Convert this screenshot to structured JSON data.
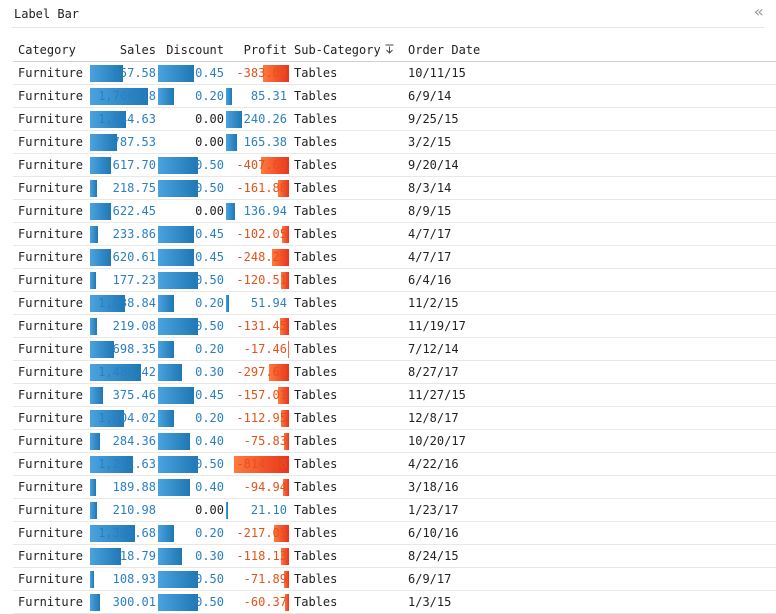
{
  "panel": {
    "title": "Label Bar",
    "collapse_glyph": "«"
  },
  "colors": {
    "bar_positive": "#1f77b4",
    "bar_negative": "#e8341f",
    "text_positive": "#2a7fc4",
    "text_negative": "#e4521b"
  },
  "table": {
    "columns": {
      "category": "Category",
      "sales": "Sales",
      "discount": "Discount",
      "profit": "Profit",
      "sub_category": "Sub-Category",
      "order_date": "Order Date"
    },
    "sort_icon": "sort-descending-icon",
    "rows": [
      {
        "category": "Furniture",
        "sales": "957.58",
        "discount": "0.45",
        "profit": "-383.03",
        "sub_category": "Tables",
        "order_date": "10/11/15"
      },
      {
        "category": "Furniture",
        "sales": "1,706.18",
        "discount": "0.20",
        "profit": "85.31",
        "sub_category": "Tables",
        "order_date": "6/9/14"
      },
      {
        "category": "Furniture",
        "sales": "1,044.63",
        "discount": "0.00",
        "profit": "240.26",
        "sub_category": "Tables",
        "order_date": "9/25/15"
      },
      {
        "category": "Furniture",
        "sales": "787.53",
        "discount": "0.00",
        "profit": "165.38",
        "sub_category": "Tables",
        "order_date": "3/2/15"
      },
      {
        "category": "Furniture",
        "sales": "617.70",
        "discount": "0.50",
        "profit": "-407.68",
        "sub_category": "Tables",
        "order_date": "9/20/14"
      },
      {
        "category": "Furniture",
        "sales": "218.75",
        "discount": "0.50",
        "profit": "-161.88",
        "sub_category": "Tables",
        "order_date": "8/3/14"
      },
      {
        "category": "Furniture",
        "sales": "622.45",
        "discount": "0.00",
        "profit": "136.94",
        "sub_category": "Tables",
        "order_date": "8/9/15"
      },
      {
        "category": "Furniture",
        "sales": "233.86",
        "discount": "0.45",
        "profit": "-102.05",
        "sub_category": "Tables",
        "order_date": "4/7/17"
      },
      {
        "category": "Furniture",
        "sales": "620.61",
        "discount": "0.45",
        "profit": "-248.25",
        "sub_category": "Tables",
        "order_date": "4/7/17"
      },
      {
        "category": "Furniture",
        "sales": "177.23",
        "discount": "0.50",
        "profit": "-120.51",
        "sub_category": "Tables",
        "order_date": "6/4/16"
      },
      {
        "category": "Furniture",
        "sales": "1,038.84",
        "discount": "0.20",
        "profit": "51.94",
        "sub_category": "Tables",
        "order_date": "11/2/15"
      },
      {
        "category": "Furniture",
        "sales": "219.08",
        "discount": "0.50",
        "profit": "-131.45",
        "sub_category": "Tables",
        "order_date": "11/19/17"
      },
      {
        "category": "Furniture",
        "sales": "698.35",
        "discount": "0.20",
        "profit": "-17.46",
        "sub_category": "Tables",
        "order_date": "7/12/14"
      },
      {
        "category": "Furniture",
        "sales": "1,488.42",
        "discount": "0.30",
        "profit": "-297.68",
        "sub_category": "Tables",
        "order_date": "8/27/17"
      },
      {
        "category": "Furniture",
        "sales": "375.46",
        "discount": "0.45",
        "profit": "-157.01",
        "sub_category": "Tables",
        "order_date": "11/27/15"
      },
      {
        "category": "Furniture",
        "sales": "1,004.02",
        "discount": "0.20",
        "profit": "-112.95",
        "sub_category": "Tables",
        "order_date": "12/8/17"
      },
      {
        "category": "Furniture",
        "sales": "284.36",
        "discount": "0.40",
        "profit": "-75.83",
        "sub_category": "Tables",
        "order_date": "10/20/17"
      },
      {
        "category": "Furniture",
        "sales": "1,272.63",
        "discount": "0.50",
        "profit": "-814.48",
        "sub_category": "Tables",
        "order_date": "4/22/16"
      },
      {
        "category": "Furniture",
        "sales": "189.88",
        "discount": "0.40",
        "profit": "-94.94",
        "sub_category": "Tables",
        "order_date": "3/18/16"
      },
      {
        "category": "Furniture",
        "sales": "210.98",
        "discount": "0.00",
        "profit": "21.10",
        "sub_category": "Tables",
        "order_date": "1/23/17"
      },
      {
        "category": "Furniture",
        "sales": "1,335.68",
        "discount": "0.20",
        "profit": "-217.05",
        "sub_category": "Tables",
        "order_date": "6/10/16"
      },
      {
        "category": "Furniture",
        "sales": "918.79",
        "discount": "0.30",
        "profit": "-118.13",
        "sub_category": "Tables",
        "order_date": "8/24/15"
      },
      {
        "category": "Furniture",
        "sales": "108.93",
        "discount": "0.50",
        "profit": "-71.89",
        "sub_category": "Tables",
        "order_date": "6/9/17"
      },
      {
        "category": "Furniture",
        "sales": "300.01",
        "discount": "0.50",
        "profit": "-60.37",
        "sub_category": "Tables",
        "order_date": "1/3/15"
      }
    ]
  }
}
